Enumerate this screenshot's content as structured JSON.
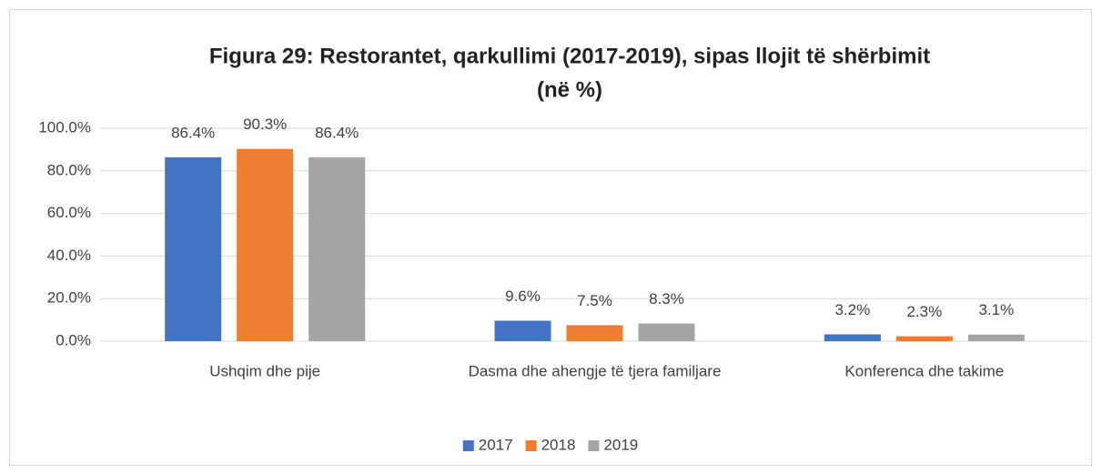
{
  "chart_data": {
    "type": "bar",
    "title": [
      "Figura 29: Restorantet, qarkullimi (2017-2019), sipas llojit të shërbimit",
      "(në %)"
    ],
    "categories": [
      "Ushqim dhe pije",
      "Dasma dhe ahengje të tjera familjare",
      "Konferenca dhe takime"
    ],
    "series": [
      {
        "name": "2017",
        "color": "#4472c4",
        "values": [
          86.4,
          9.6,
          3.2
        ],
        "value_labels": [
          "86.4%",
          "9.6%",
          "3.2%"
        ]
      },
      {
        "name": "2018",
        "color": "#ed7d31",
        "values": [
          90.3,
          7.5,
          2.3
        ],
        "value_labels": [
          "90.3%",
          "7.5%",
          "2.3%"
        ]
      },
      {
        "name": "2019",
        "color": "#a5a5a5",
        "values": [
          86.4,
          8.3,
          3.1
        ],
        "value_labels": [
          "86.4%",
          "8.3%",
          "3.1%"
        ]
      }
    ],
    "ylim": [
      0,
      100
    ],
    "yticks": [
      {
        "value": 0,
        "label": "0.0%"
      },
      {
        "value": 20,
        "label": "20.0%"
      },
      {
        "value": 40,
        "label": "40.0%"
      },
      {
        "value": 60,
        "label": "60.0%"
      },
      {
        "value": 80,
        "label": "80.0%"
      },
      {
        "value": 100,
        "label": "100.0%"
      }
    ],
    "grid": true,
    "legend": "bottom"
  }
}
